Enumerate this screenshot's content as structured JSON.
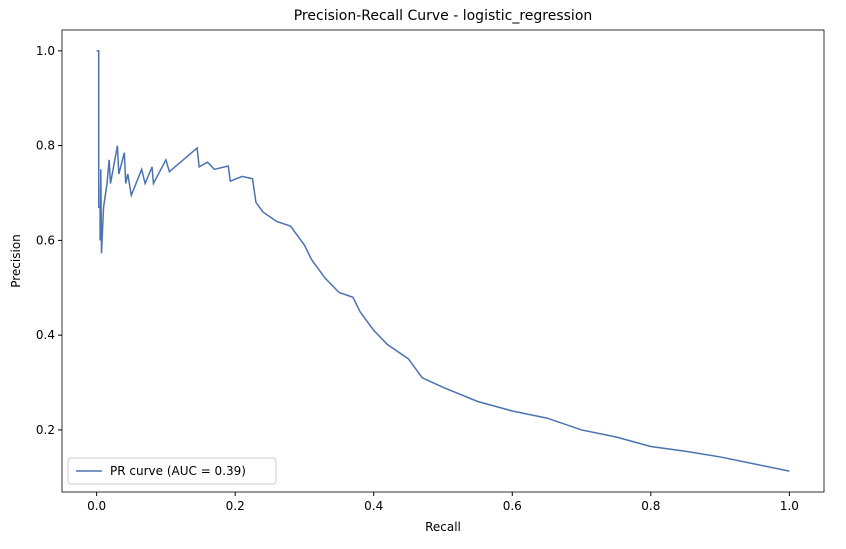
{
  "chart_data": {
    "type": "line",
    "title": "Precision-Recall Curve - logistic_regression",
    "x_label": "Recall",
    "y_label": "Precision",
    "series": [
      {
        "name": "PR curve (AUC = 0.39)",
        "color": "#4c72b0",
        "x": [
          0,
          0.003,
          0.003,
          0.005,
          0.005,
          0.006,
          0.007,
          0.01,
          0.015,
          0.018,
          0.02,
          0.03,
          0.032,
          0.04,
          0.042,
          0.045,
          0.05,
          0.065,
          0.07,
          0.08,
          0.082,
          0.1,
          0.105,
          0.145,
          0.148,
          0.16,
          0.17,
          0.19,
          0.193,
          0.21,
          0.225,
          0.23,
          0.24,
          0.26,
          0.28,
          0.3,
          0.31,
          0.33,
          0.35,
          0.37,
          0.38,
          0.4,
          0.42,
          0.45,
          0.47,
          0.5,
          0.55,
          0.6,
          0.65,
          0.7,
          0.75,
          0.8,
          0.85,
          0.9,
          0.95,
          1.0
        ],
        "values": [
          1.0,
          1.0,
          0.67,
          0.67,
          0.6,
          0.75,
          0.573,
          0.67,
          0.72,
          0.77,
          0.72,
          0.8,
          0.74,
          0.785,
          0.72,
          0.74,
          0.695,
          0.75,
          0.72,
          0.755,
          0.72,
          0.77,
          0.745,
          0.795,
          0.755,
          0.765,
          0.75,
          0.757,
          0.725,
          0.735,
          0.73,
          0.68,
          0.66,
          0.64,
          0.63,
          0.59,
          0.56,
          0.52,
          0.49,
          0.48,
          0.45,
          0.41,
          0.38,
          0.35,
          0.31,
          0.29,
          0.26,
          0.24,
          0.225,
          0.2,
          0.185,
          0.165,
          0.155,
          0.143,
          0.128,
          0.113
        ]
      }
    ],
    "xlim": [
      -0.05,
      1.05
    ],
    "ylim": [
      0.069,
      1.044
    ],
    "xticks": [
      {
        "value": 0,
        "label": "0.0"
      },
      0.2,
      0.4,
      0.6,
      0.8,
      {
        "value": 1,
        "label": "1.0"
      }
    ],
    "yticks": [
      0.2,
      0.4,
      0.6,
      0.8,
      {
        "value": 1,
        "label": "1.0"
      }
    ],
    "grid": false,
    "legend": "lower-left"
  }
}
